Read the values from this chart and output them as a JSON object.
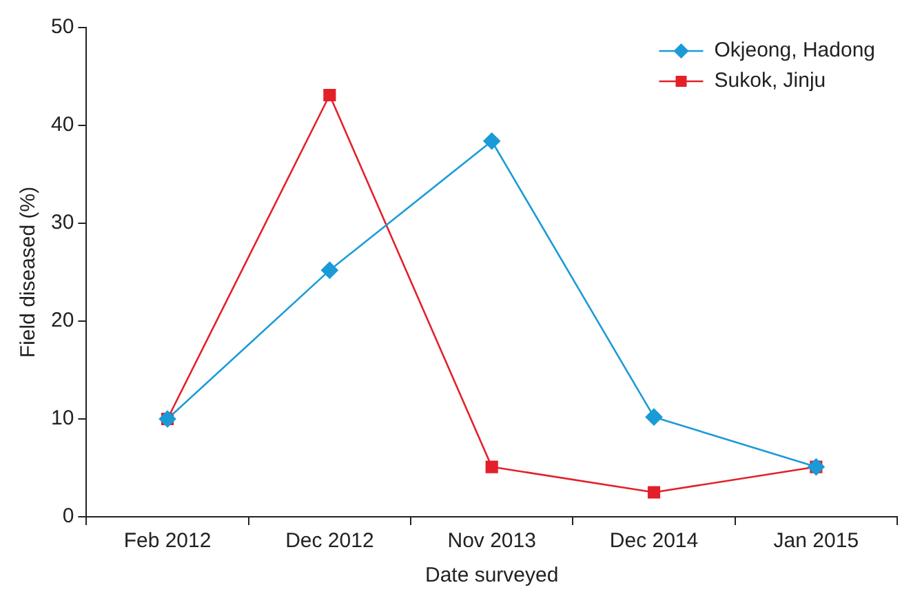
{
  "chart_data": {
    "type": "line",
    "xlabel": "Date surveyed",
    "ylabel": "Field diseased (%)",
    "categories": [
      "Feb 2012",
      "Dec 2012",
      "Nov 2013",
      "Dec 2014",
      "Jan 2015"
    ],
    "series": [
      {
        "name": "Okjeong, Hadong",
        "color": "#1a9bd7",
        "marker": "diamond",
        "values": [
          10,
          25.2,
          38.4,
          10.2,
          5.1
        ]
      },
      {
        "name": "Sukok, Jinju",
        "color": "#e3202a",
        "marker": "square",
        "values": [
          10,
          43.1,
          5.1,
          2.5,
          5.1
        ]
      }
    ],
    "ylim": [
      0,
      50
    ],
    "yticks": [
      0,
      10,
      20,
      30,
      40,
      50
    ],
    "grid": false,
    "legend": "top right",
    "line_style": "solid"
  }
}
